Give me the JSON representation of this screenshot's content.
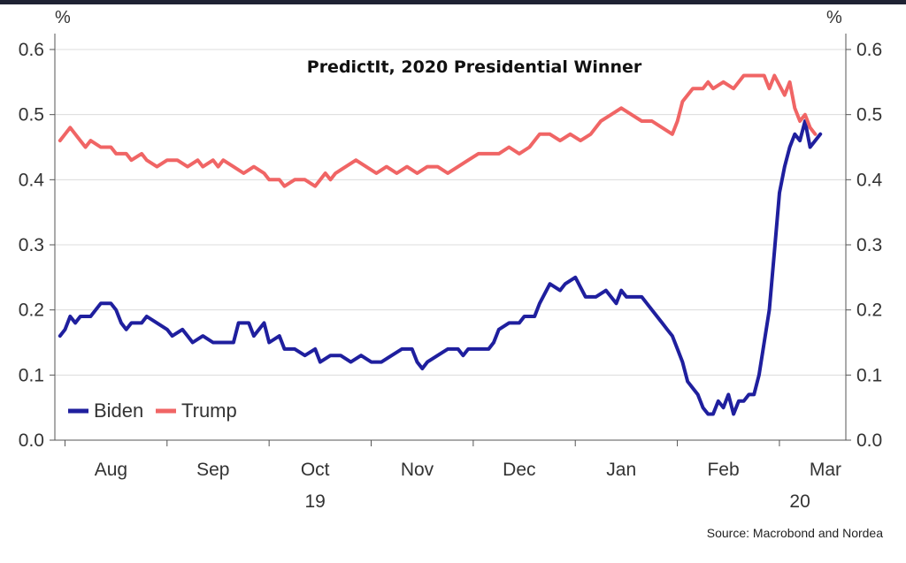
{
  "chart_data": {
    "type": "line",
    "title": "PredictIt, 2020 Presidential Winner",
    "y_unit_left": "%",
    "y_unit_right": "%",
    "ylim": [
      0,
      0.6
    ],
    "y_ticks": [
      "0.0",
      "0.1",
      "0.2",
      "0.3",
      "0.4",
      "0.5",
      "0.6"
    ],
    "x_month_labels": [
      {
        "label": "Aug",
        "x": 8
      },
      {
        "label": "Sep",
        "x": 9
      },
      {
        "label": "Oct",
        "x": 10
      },
      {
        "label": "Nov",
        "x": 11
      },
      {
        "label": "Dec",
        "x": 12
      },
      {
        "label": "Jan",
        "x": 13
      },
      {
        "label": "Feb",
        "x": 14
      },
      {
        "label": "Mar",
        "x": 15
      }
    ],
    "x_year_labels": [
      {
        "label": "19",
        "x": 10
      },
      {
        "label": "20",
        "x": 14.75
      }
    ],
    "xlim": [
      7.45,
      15.2
    ],
    "grid": "horizontal",
    "legend_position": "bottom-left",
    "series": [
      {
        "name": "Biden",
        "color": "#1f1f9e",
        "points": [
          [
            7.5,
            0.16
          ],
          [
            7.55,
            0.17
          ],
          [
            7.6,
            0.19
          ],
          [
            7.65,
            0.18
          ],
          [
            7.7,
            0.19
          ],
          [
            7.8,
            0.19
          ],
          [
            7.85,
            0.2
          ],
          [
            7.9,
            0.21
          ],
          [
            8.0,
            0.21
          ],
          [
            8.05,
            0.2
          ],
          [
            8.1,
            0.18
          ],
          [
            8.15,
            0.17
          ],
          [
            8.2,
            0.18
          ],
          [
            8.3,
            0.18
          ],
          [
            8.35,
            0.19
          ],
          [
            8.45,
            0.18
          ],
          [
            8.55,
            0.17
          ],
          [
            8.6,
            0.16
          ],
          [
            8.7,
            0.17
          ],
          [
            8.75,
            0.16
          ],
          [
            8.8,
            0.15
          ],
          [
            8.9,
            0.16
          ],
          [
            9.0,
            0.15
          ],
          [
            9.1,
            0.15
          ],
          [
            9.2,
            0.15
          ],
          [
            9.25,
            0.18
          ],
          [
            9.35,
            0.18
          ],
          [
            9.4,
            0.16
          ],
          [
            9.5,
            0.18
          ],
          [
            9.55,
            0.15
          ],
          [
            9.65,
            0.16
          ],
          [
            9.7,
            0.14
          ],
          [
            9.8,
            0.14
          ],
          [
            9.9,
            0.13
          ],
          [
            10.0,
            0.14
          ],
          [
            10.05,
            0.12
          ],
          [
            10.15,
            0.13
          ],
          [
            10.25,
            0.13
          ],
          [
            10.35,
            0.12
          ],
          [
            10.45,
            0.13
          ],
          [
            10.55,
            0.12
          ],
          [
            10.65,
            0.12
          ],
          [
            10.75,
            0.13
          ],
          [
            10.85,
            0.14
          ],
          [
            10.95,
            0.14
          ],
          [
            11.0,
            0.12
          ],
          [
            11.05,
            0.11
          ],
          [
            11.1,
            0.12
          ],
          [
            11.2,
            0.13
          ],
          [
            11.3,
            0.14
          ],
          [
            11.4,
            0.14
          ],
          [
            11.45,
            0.13
          ],
          [
            11.5,
            0.14
          ],
          [
            11.6,
            0.14
          ],
          [
            11.7,
            0.14
          ],
          [
            11.75,
            0.15
          ],
          [
            11.8,
            0.17
          ],
          [
            11.9,
            0.18
          ],
          [
            12.0,
            0.18
          ],
          [
            12.05,
            0.19
          ],
          [
            12.15,
            0.19
          ],
          [
            12.2,
            0.21
          ],
          [
            12.3,
            0.24
          ],
          [
            12.4,
            0.23
          ],
          [
            12.45,
            0.24
          ],
          [
            12.55,
            0.25
          ],
          [
            12.65,
            0.22
          ],
          [
            12.75,
            0.22
          ],
          [
            12.85,
            0.23
          ],
          [
            12.95,
            0.21
          ],
          [
            13.0,
            0.23
          ],
          [
            13.05,
            0.22
          ],
          [
            13.1,
            0.22
          ],
          [
            13.2,
            0.22
          ],
          [
            13.25,
            0.21
          ],
          [
            13.35,
            0.19
          ],
          [
            13.4,
            0.18
          ],
          [
            13.45,
            0.17
          ],
          [
            13.5,
            0.16
          ],
          [
            13.55,
            0.14
          ],
          [
            13.6,
            0.12
          ],
          [
            13.65,
            0.09
          ],
          [
            13.7,
            0.08
          ],
          [
            13.75,
            0.07
          ],
          [
            13.8,
            0.05
          ],
          [
            13.85,
            0.04
          ],
          [
            13.9,
            0.04
          ],
          [
            13.95,
            0.06
          ],
          [
            14.0,
            0.05
          ],
          [
            14.05,
            0.07
          ],
          [
            14.1,
            0.04
          ],
          [
            14.15,
            0.06
          ],
          [
            14.2,
            0.06
          ],
          [
            14.25,
            0.07
          ],
          [
            14.3,
            0.07
          ],
          [
            14.35,
            0.1
          ],
          [
            14.4,
            0.15
          ],
          [
            14.45,
            0.2
          ],
          [
            14.5,
            0.29
          ],
          [
            14.55,
            0.38
          ],
          [
            14.6,
            0.42
          ],
          [
            14.65,
            0.45
          ],
          [
            14.7,
            0.47
          ],
          [
            14.75,
            0.46
          ],
          [
            14.8,
            0.49
          ],
          [
            14.85,
            0.45
          ],
          [
            14.9,
            0.46
          ],
          [
            14.95,
            0.47
          ]
        ]
      },
      {
        "name": "Trump",
        "color": "#f06565",
        "points": [
          [
            7.5,
            0.46
          ],
          [
            7.55,
            0.47
          ],
          [
            7.6,
            0.48
          ],
          [
            7.65,
            0.47
          ],
          [
            7.7,
            0.46
          ],
          [
            7.75,
            0.45
          ],
          [
            7.8,
            0.46
          ],
          [
            7.9,
            0.45
          ],
          [
            8.0,
            0.45
          ],
          [
            8.05,
            0.44
          ],
          [
            8.15,
            0.44
          ],
          [
            8.2,
            0.43
          ],
          [
            8.3,
            0.44
          ],
          [
            8.35,
            0.43
          ],
          [
            8.45,
            0.42
          ],
          [
            8.55,
            0.43
          ],
          [
            8.65,
            0.43
          ],
          [
            8.75,
            0.42
          ],
          [
            8.85,
            0.43
          ],
          [
            8.9,
            0.42
          ],
          [
            9.0,
            0.43
          ],
          [
            9.05,
            0.42
          ],
          [
            9.1,
            0.43
          ],
          [
            9.2,
            0.42
          ],
          [
            9.3,
            0.41
          ],
          [
            9.4,
            0.42
          ],
          [
            9.5,
            0.41
          ],
          [
            9.55,
            0.4
          ],
          [
            9.65,
            0.4
          ],
          [
            9.7,
            0.39
          ],
          [
            9.8,
            0.4
          ],
          [
            9.9,
            0.4
          ],
          [
            10.0,
            0.39
          ],
          [
            10.1,
            0.41
          ],
          [
            10.15,
            0.4
          ],
          [
            10.2,
            0.41
          ],
          [
            10.3,
            0.42
          ],
          [
            10.4,
            0.43
          ],
          [
            10.5,
            0.42
          ],
          [
            10.6,
            0.41
          ],
          [
            10.7,
            0.42
          ],
          [
            10.8,
            0.41
          ],
          [
            10.9,
            0.42
          ],
          [
            11.0,
            0.41
          ],
          [
            11.1,
            0.42
          ],
          [
            11.2,
            0.42
          ],
          [
            11.3,
            0.41
          ],
          [
            11.4,
            0.42
          ],
          [
            11.5,
            0.43
          ],
          [
            11.6,
            0.44
          ],
          [
            11.7,
            0.44
          ],
          [
            11.8,
            0.44
          ],
          [
            11.9,
            0.45
          ],
          [
            12.0,
            0.44
          ],
          [
            12.1,
            0.45
          ],
          [
            12.2,
            0.47
          ],
          [
            12.3,
            0.47
          ],
          [
            12.4,
            0.46
          ],
          [
            12.5,
            0.47
          ],
          [
            12.6,
            0.46
          ],
          [
            12.7,
            0.47
          ],
          [
            12.8,
            0.49
          ],
          [
            12.9,
            0.5
          ],
          [
            13.0,
            0.51
          ],
          [
            13.1,
            0.5
          ],
          [
            13.2,
            0.49
          ],
          [
            13.3,
            0.49
          ],
          [
            13.4,
            0.48
          ],
          [
            13.5,
            0.47
          ],
          [
            13.55,
            0.49
          ],
          [
            13.6,
            0.52
          ],
          [
            13.7,
            0.54
          ],
          [
            13.8,
            0.54
          ],
          [
            13.85,
            0.55
          ],
          [
            13.9,
            0.54
          ],
          [
            14.0,
            0.55
          ],
          [
            14.1,
            0.54
          ],
          [
            14.2,
            0.56
          ],
          [
            14.3,
            0.56
          ],
          [
            14.4,
            0.56
          ],
          [
            14.45,
            0.54
          ],
          [
            14.5,
            0.56
          ],
          [
            14.6,
            0.53
          ],
          [
            14.65,
            0.55
          ],
          [
            14.7,
            0.51
          ],
          [
            14.75,
            0.49
          ],
          [
            14.8,
            0.5
          ],
          [
            14.85,
            0.48
          ],
          [
            14.9,
            0.47
          ]
        ]
      }
    ],
    "source": "Source: Macrobond and Nordea"
  }
}
